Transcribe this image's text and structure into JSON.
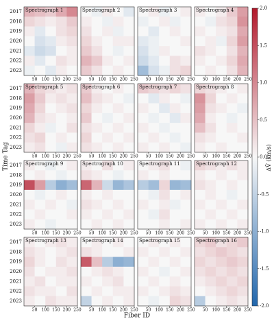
{
  "chart_data": {
    "type": "heatmap",
    "xlabel": "Fiber ID",
    "ylabel": "Time Tag",
    "colorbar_label": "ΔV̄ (km/s)",
    "xlim": [
      0,
      250
    ],
    "xticks": [
      50,
      100,
      150,
      200,
      250
    ],
    "x_bins": [
      0,
      50,
      100,
      150,
      200,
      250
    ],
    "y_categories": [
      "2017",
      "2018",
      "2019",
      "2020",
      "2021",
      "2022",
      "2023"
    ],
    "zlim": [
      -2,
      2
    ],
    "zticks": [
      {
        "value": -2,
        "label": "-2.0"
      },
      {
        "value": -1.5,
        "label": "-1.5"
      },
      {
        "value": -1,
        "label": "-1.0"
      },
      {
        "value": -0.5,
        "label": "-0.5"
      },
      {
        "value": 0,
        "label": "0.0"
      },
      {
        "value": 0.5,
        "label": "0.5"
      },
      {
        "value": 1,
        "label": "1.0"
      },
      {
        "value": 1.5,
        "label": "1.5"
      },
      {
        "value": 2,
        "label": "2.0"
      }
    ],
    "colormap": {
      "low": "#2166ac",
      "mid": "#f7f7f7",
      "high": "#b2182b"
    },
    "panels": [
      {
        "title": "Spectrograph 1",
        "values": [
          [
            0.6,
            0.5,
            0.4,
            0.7,
            1.0
          ],
          [
            0.3,
            0.2,
            0.1,
            0.2,
            0.4
          ],
          [
            0.1,
            -0.2,
            0.0,
            0.2,
            0.3
          ],
          [
            0.0,
            -0.3,
            -0.2,
            0.1,
            0.2
          ],
          [
            -0.2,
            -0.4,
            -0.3,
            0.0,
            0.1
          ],
          [
            0.1,
            -0.2,
            0.0,
            0.2,
            0.1
          ],
          [
            -0.1,
            0.0,
            -0.2,
            0.1,
            0.0
          ]
        ]
      },
      {
        "title": "Spectrograph 2",
        "values": [
          [
            0.0,
            -0.1,
            0.1,
            0.0,
            -0.2
          ],
          [
            0.1,
            0.0,
            -0.1,
            0.1,
            0.0
          ],
          [
            0.2,
            0.0,
            0.1,
            -0.1,
            0.0
          ],
          [
            0.3,
            0.1,
            0.0,
            0.1,
            0.1
          ],
          [
            0.4,
            0.2,
            0.0,
            -0.1,
            0.0
          ],
          [
            0.6,
            0.4,
            0.1,
            0.0,
            0.1
          ],
          [
            0.4,
            0.2,
            0.0,
            0.1,
            0.0
          ]
        ]
      },
      {
        "title": "Spectrograph 3",
        "values": [
          [
            0.0,
            0.1,
            -0.1,
            0.0,
            0.1
          ],
          [
            -0.1,
            0.0,
            0.1,
            -0.1,
            0.0
          ],
          [
            0.0,
            -0.2,
            0.0,
            0.1,
            0.0
          ],
          [
            -0.2,
            -0.1,
            0.0,
            0.0,
            0.1
          ],
          [
            -0.3,
            -0.1,
            0.1,
            0.0,
            0.0
          ],
          [
            -0.4,
            -0.2,
            0.0,
            0.2,
            0.1
          ],
          [
            -0.8,
            -0.3,
            -0.1,
            0.2,
            0.3
          ]
        ]
      },
      {
        "title": "Spectrograph 4",
        "values": [
          [
            0.1,
            0.0,
            0.1,
            0.4,
            0.8
          ],
          [
            0.0,
            -0.1,
            0.2,
            0.3,
            0.9
          ],
          [
            0.1,
            0.0,
            0.1,
            0.2,
            0.7
          ],
          [
            0.0,
            0.1,
            -0.1,
            0.3,
            0.8
          ],
          [
            0.2,
            0.1,
            0.0,
            0.2,
            0.6
          ],
          [
            0.1,
            0.0,
            0.1,
            0.3,
            0.7
          ],
          [
            0.0,
            0.1,
            0.0,
            0.2,
            0.6
          ]
        ]
      },
      {
        "title": "Spectrograph 5",
        "values": [
          [
            0.6,
            0.3,
            0.2,
            0.1,
            0.2
          ],
          [
            0.8,
            0.4,
            0.1,
            0.2,
            0.1
          ],
          [
            0.7,
            0.3,
            0.0,
            0.1,
            0.2
          ],
          [
            0.6,
            0.2,
            0.1,
            0.0,
            0.1
          ],
          [
            0.3,
            0.1,
            -0.1,
            0.0,
            0.2
          ],
          [
            0.2,
            0.3,
            0.0,
            0.1,
            0.0
          ],
          [
            0.1,
            0.2,
            0.0,
            -0.1,
            0.1
          ]
        ]
      },
      {
        "title": "Spectrograph 6",
        "values": [
          [
            0.4,
            0.1,
            0.0,
            0.1,
            0.0
          ],
          [
            0.5,
            0.2,
            0.1,
            0.0,
            -0.1
          ],
          [
            0.3,
            0.1,
            0.0,
            0.1,
            0.0
          ],
          [
            0.4,
            0.0,
            -0.1,
            0.0,
            0.1
          ],
          [
            0.2,
            0.1,
            0.0,
            0.1,
            0.0
          ],
          [
            0.3,
            0.0,
            0.1,
            0.0,
            0.1
          ],
          [
            0.2,
            0.1,
            0.0,
            0.1,
            0.0
          ]
        ]
      },
      {
        "title": "Spectrograph 7",
        "values": [
          [
            0.4,
            0.3,
            0.2,
            0.3,
            0.2
          ],
          [
            0.0,
            -0.2,
            0.1,
            0.0,
            -0.1
          ],
          [
            0.1,
            0.0,
            -0.2,
            0.1,
            0.0
          ],
          [
            0.0,
            -0.1,
            0.0,
            -0.2,
            0.1
          ],
          [
            0.1,
            0.0,
            -0.1,
            0.0,
            0.0
          ],
          [
            0.0,
            0.1,
            0.0,
            -0.1,
            0.0
          ],
          [
            0.1,
            0.0,
            0.1,
            0.0,
            -0.1
          ]
        ]
      },
      {
        "title": "Spectrograph 8",
        "values": [
          [
            0.3,
            0.2,
            0.1,
            0.0,
            0.1
          ],
          [
            0.9,
            0.3,
            0.0,
            0.1,
            0.0
          ],
          [
            0.8,
            0.2,
            0.1,
            0.0,
            -0.1
          ],
          [
            0.7,
            0.1,
            0.0,
            -0.1,
            0.0
          ],
          [
            0.5,
            0.2,
            0.0,
            0.1,
            0.0
          ],
          [
            0.2,
            0.1,
            0.0,
            0.0,
            0.1
          ],
          [
            0.1,
            0.0,
            0.1,
            0.0,
            0.0
          ]
        ]
      },
      {
        "title": "Spectrograph 9",
        "values": [
          [
            0.1,
            0.0,
            -0.1,
            0.0,
            0.1
          ],
          [
            0.0,
            0.1,
            0.0,
            -0.1,
            0.0
          ],
          [
            1.5,
            0.8,
            -0.6,
            -1.0,
            -0.8
          ],
          [
            0.0,
            -0.1,
            0.0,
            0.1,
            0.0
          ],
          [
            0.1,
            0.0,
            0.1,
            0.0,
            -0.1
          ],
          [
            0.0,
            0.1,
            0.0,
            0.0,
            0.1
          ],
          [
            0.1,
            0.0,
            -0.1,
            0.0,
            0.0
          ]
        ]
      },
      {
        "title": "Spectrograph 10",
        "values": [
          [
            0.1,
            0.0,
            0.2,
            0.0,
            0.1
          ],
          [
            0.2,
            0.1,
            0.0,
            -0.1,
            0.0
          ],
          [
            1.3,
            0.6,
            -0.4,
            -0.9,
            -0.7
          ],
          [
            0.1,
            0.0,
            0.1,
            0.0,
            0.0
          ],
          [
            0.2,
            0.1,
            0.0,
            0.1,
            0.0
          ],
          [
            0.1,
            0.0,
            0.1,
            0.0,
            0.1
          ],
          [
            0.0,
            0.1,
            0.0,
            0.1,
            0.0
          ]
        ]
      },
      {
        "title": "Spectrograph 11",
        "values": [
          [
            0.0,
            0.1,
            0.2,
            0.0,
            -0.1
          ],
          [
            0.1,
            0.0,
            0.1,
            0.0,
            0.0
          ],
          [
            -0.6,
            -0.8,
            0.3,
            -0.9,
            -0.8
          ],
          [
            0.0,
            -0.1,
            0.2,
            0.0,
            0.1
          ],
          [
            0.1,
            0.0,
            0.1,
            -0.1,
            0.0
          ],
          [
            0.0,
            -0.1,
            0.2,
            0.0,
            0.0
          ],
          [
            0.0,
            0.0,
            0.1,
            0.0,
            0.1
          ]
        ]
      },
      {
        "title": "Spectrograph 12",
        "values": [
          [
            0.3,
            0.2,
            0.1,
            0.2,
            0.1
          ],
          [
            0.1,
            0.0,
            0.1,
            0.0,
            0.1
          ],
          [
            0.2,
            0.1,
            0.0,
            0.1,
            0.0
          ],
          [
            0.0,
            0.1,
            0.0,
            -0.1,
            0.0
          ],
          [
            0.1,
            0.0,
            0.1,
            0.0,
            0.1
          ],
          [
            0.0,
            0.1,
            0.0,
            0.1,
            0.0
          ],
          [
            0.1,
            0.0,
            0.1,
            0.0,
            0.1
          ]
        ]
      },
      {
        "title": "Spectrograph 13",
        "values": [
          [
            0.1,
            0.0,
            0.1,
            0.2,
            0.1
          ],
          [
            0.2,
            0.1,
            0.0,
            0.1,
            0.2
          ],
          [
            0.3,
            0.1,
            0.0,
            0.2,
            0.1
          ],
          [
            0.2,
            0.0,
            0.1,
            0.1,
            0.2
          ],
          [
            0.1,
            0.2,
            0.0,
            0.1,
            0.1
          ],
          [
            0.2,
            0.1,
            0.1,
            0.0,
            0.2
          ],
          [
            0.1,
            0.0,
            0.2,
            0.1,
            0.1
          ]
        ]
      },
      {
        "title": "Spectrograph 14",
        "values": [
          [
            0.0,
            0.1,
            0.0,
            0.1,
            0.0
          ],
          [
            0.2,
            0.1,
            0.0,
            0.0,
            0.1
          ],
          [
            1.4,
            0.5,
            -0.6,
            -1.0,
            -0.9
          ],
          [
            0.0,
            0.1,
            0.2,
            0.1,
            0.0
          ],
          [
            0.1,
            0.0,
            0.1,
            0.2,
            0.0
          ],
          [
            0.0,
            0.1,
            0.0,
            0.1,
            0.1
          ],
          [
            -0.5,
            0.0,
            0.1,
            0.0,
            0.1
          ]
        ]
      },
      {
        "title": "Spectrograph 15",
        "values": [
          [
            0.0,
            0.1,
            0.0,
            0.1,
            0.0
          ],
          [
            0.1,
            0.0,
            0.1,
            0.0,
            0.1
          ],
          [
            0.0,
            0.1,
            0.0,
            0.1,
            0.0
          ],
          [
            0.1,
            0.0,
            -0.1,
            0.0,
            0.1
          ],
          [
            0.0,
            0.1,
            0.0,
            0.1,
            0.0
          ],
          [
            0.1,
            0.0,
            0.1,
            0.2,
            0.1
          ],
          [
            0.0,
            -0.1,
            0.0,
            0.3,
            0.2
          ]
        ]
      },
      {
        "title": "Spectrograph 16",
        "values": [
          [
            0.3,
            0.4,
            0.2,
            0.3,
            0.4
          ],
          [
            0.2,
            0.3,
            0.4,
            0.3,
            0.2
          ],
          [
            0.3,
            0.2,
            0.3,
            0.4,
            0.3
          ],
          [
            0.2,
            0.3,
            0.2,
            0.3,
            0.2
          ],
          [
            0.1,
            0.2,
            0.3,
            0.2,
            0.3
          ],
          [
            0.0,
            0.1,
            0.2,
            0.3,
            0.2
          ],
          [
            -0.6,
            0.0,
            0.1,
            0.2,
            0.1
          ]
        ]
      }
    ]
  }
}
